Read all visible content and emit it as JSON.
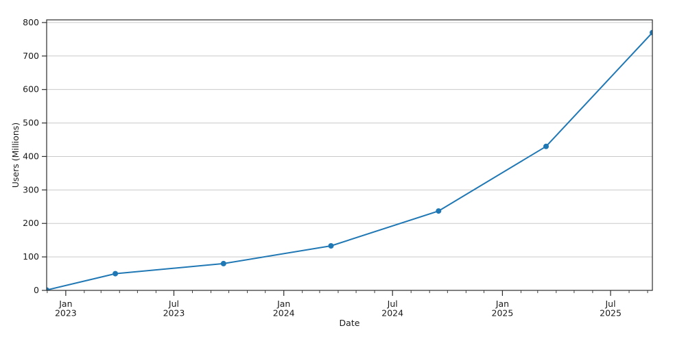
{
  "chart_data": {
    "type": "line",
    "title": "",
    "xlabel": "Date",
    "ylabel": "Users (Millions)",
    "legend": null,
    "grid": {
      "horizontal": true,
      "vertical": false
    },
    "ylim": [
      0,
      808
    ],
    "xlim": [
      "2022-11-30",
      "2025-09-09"
    ],
    "y_ticks": [
      0,
      100,
      200,
      300,
      400,
      500,
      600,
      700,
      800
    ],
    "x_ticks": [
      {
        "line1": "Jan",
        "line2": "2023",
        "date": "2023-01-01"
      },
      {
        "line1": "Jul",
        "line2": "2023",
        "date": "2023-07-01"
      },
      {
        "line1": "Jan",
        "line2": "2024",
        "date": "2024-01-01"
      },
      {
        "line1": "Jul",
        "line2": "2024",
        "date": "2024-07-01"
      },
      {
        "line1": "Jan",
        "line2": "2025",
        "date": "2025-01-01"
      },
      {
        "line1": "Jul",
        "line2": "2025",
        "date": "2025-07-01"
      }
    ],
    "x_minor_tick_unit": "month",
    "series": [
      {
        "name": "Users",
        "marker": "circle",
        "x": [
          "2022-11-30",
          "2023-03-25",
          "2023-09-22",
          "2024-03-20",
          "2024-09-16",
          "2025-03-15",
          "2025-09-09"
        ],
        "y": [
          1,
          50,
          80,
          133,
          237,
          430,
          770
        ]
      }
    ],
    "colors": {
      "line": "#1f77b4",
      "marker": "#1f77b4",
      "grid": "#c9c9c9",
      "axis": "#2b2b2b",
      "text": "#191919",
      "plot_background": "#ffffff",
      "figure_background": "#ffffff"
    }
  }
}
